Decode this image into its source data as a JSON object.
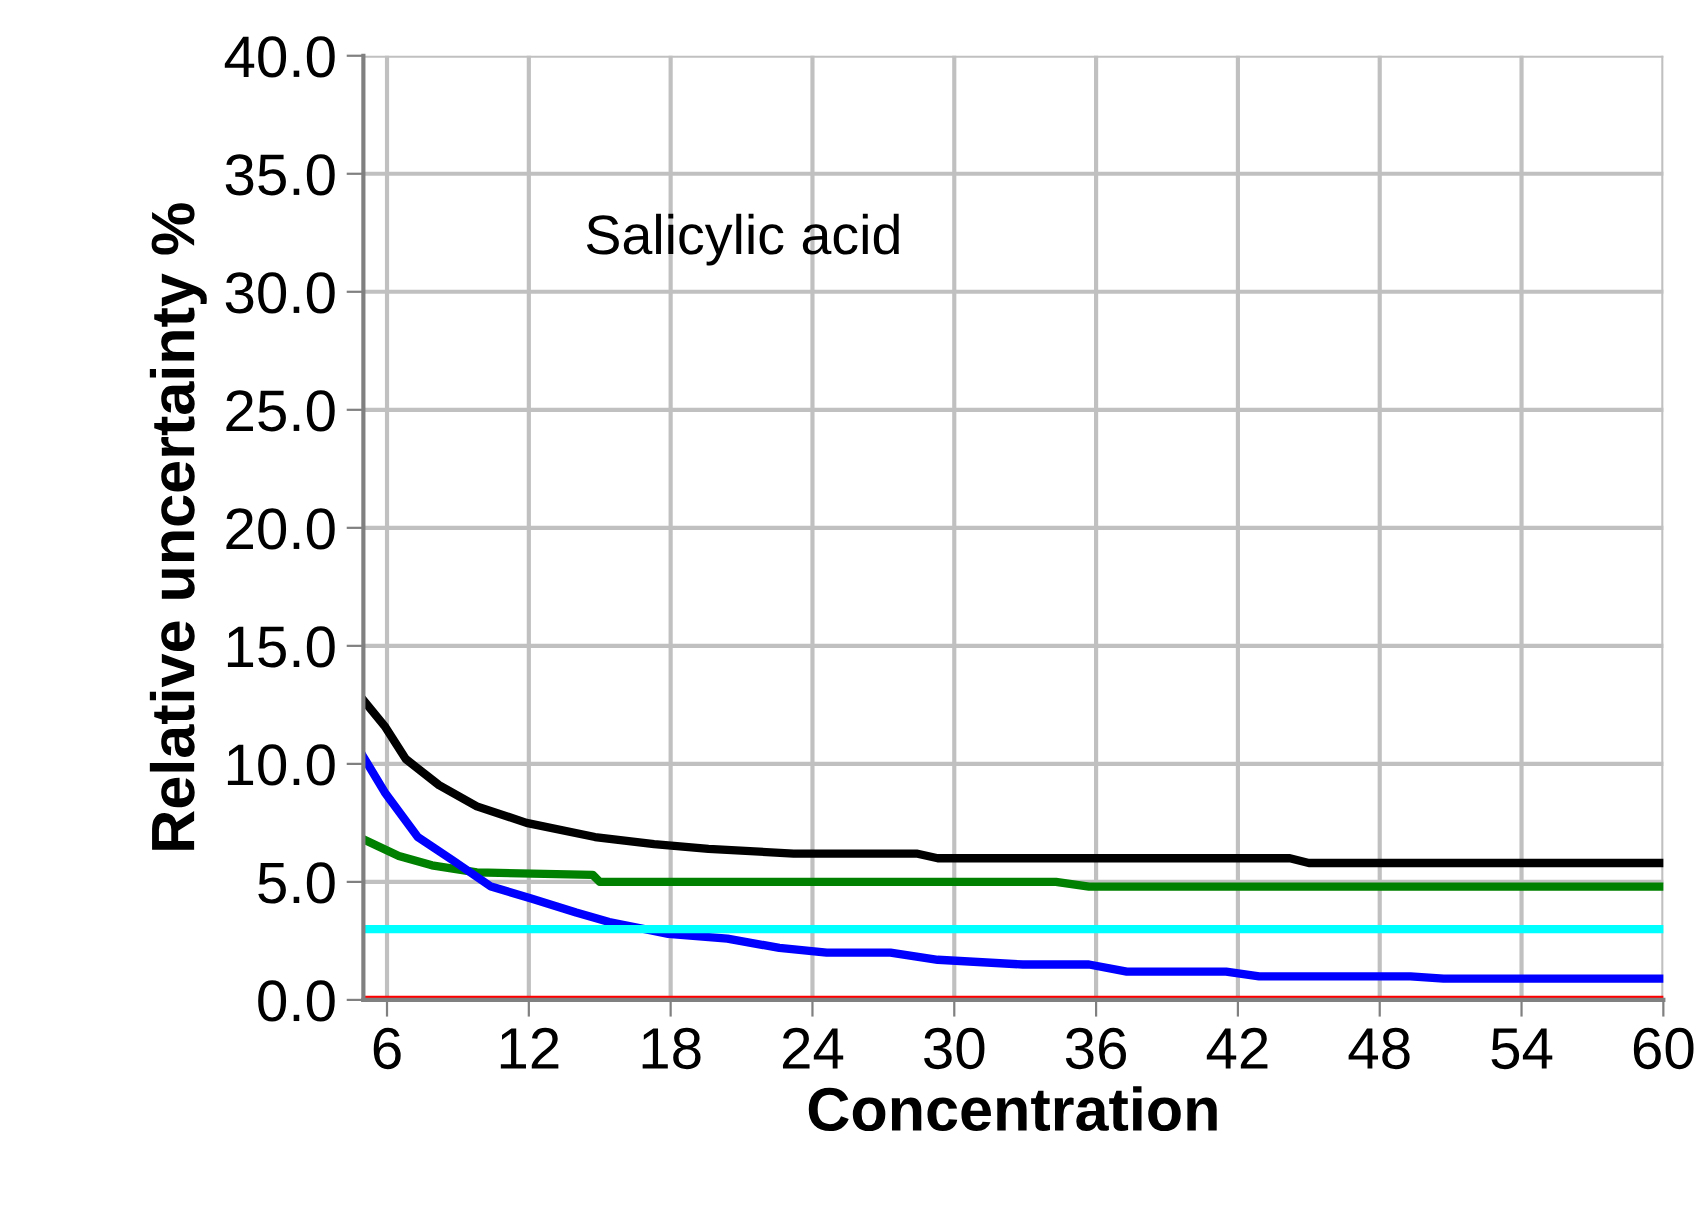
{
  "chart_data": {
    "type": "line",
    "xlabel": "Concentration",
    "ylabel": "Relative uncertainty %",
    "annotations": [
      "Salicylic acid"
    ],
    "xlim": [
      5,
      60
    ],
    "xticks": [
      6,
      12,
      18,
      24,
      30,
      36,
      42,
      48,
      54,
      60
    ],
    "ylim": [
      0,
      40
    ],
    "yticks": [
      {
        "value": 0,
        "label": "0.0"
      },
      {
        "value": 5,
        "label": "5.0"
      },
      {
        "value": 10,
        "label": "10.0"
      },
      {
        "value": 15,
        "label": "15.0"
      },
      {
        "value": 20,
        "label": "20.0"
      },
      {
        "value": 25,
        "label": "25.0"
      },
      {
        "value": 30,
        "label": "30.0"
      },
      {
        "value": 35,
        "label": "35.0"
      },
      {
        "value": 40,
        "label": "40.0"
      }
    ],
    "grid": true,
    "marker": "none",
    "line_style": "solid",
    "series": [
      {
        "color": "#000000",
        "x": [
          5.0,
          5.9,
          6.8,
          8.2,
          9.8,
          11.9,
          14.8,
          17.3,
          19.6,
          23.2,
          28.4,
          29.3,
          44.2,
          45.0,
          60
        ],
        "values": [
          12.7,
          11.6,
          10.2,
          9.1,
          8.2,
          7.5,
          6.9,
          6.6,
          6.4,
          6.2,
          6.2,
          6.0,
          6.0,
          5.8,
          5.8
        ]
      },
      {
        "color": "#008000",
        "x": [
          5.0,
          6.5,
          7.9,
          9.8,
          14.7,
          15.0,
          34.3,
          35.7,
          60
        ],
        "values": [
          6.8,
          6.1,
          5.7,
          5.4,
          5.3,
          5.0,
          5.0,
          4.8,
          4.8
        ]
      },
      {
        "color": "#0000ff",
        "x": [
          5.0,
          5.9,
          7.3,
          8.8,
          10.4,
          12.1,
          14.0,
          15.4,
          17.9,
          20.4,
          22.6,
          24.6,
          27.3,
          29.3,
          32.9,
          35.7,
          37.3,
          41.5,
          42.9,
          49.3,
          50.7,
          60
        ],
        "values": [
          10.3,
          8.8,
          6.9,
          5.9,
          4.8,
          4.3,
          3.7,
          3.3,
          2.8,
          2.6,
          2.2,
          2.0,
          2.0,
          1.7,
          1.5,
          1.5,
          1.2,
          1.2,
          1.0,
          1.0,
          0.9,
          0.9
        ]
      },
      {
        "color": "#00ffff",
        "x": [
          5.0,
          60
        ],
        "values": [
          3.0,
          3.0
        ]
      },
      {
        "color": "#ff0000",
        "x": [
          5.0,
          60
        ],
        "values": [
          0.0,
          0.0
        ]
      }
    ]
  }
}
